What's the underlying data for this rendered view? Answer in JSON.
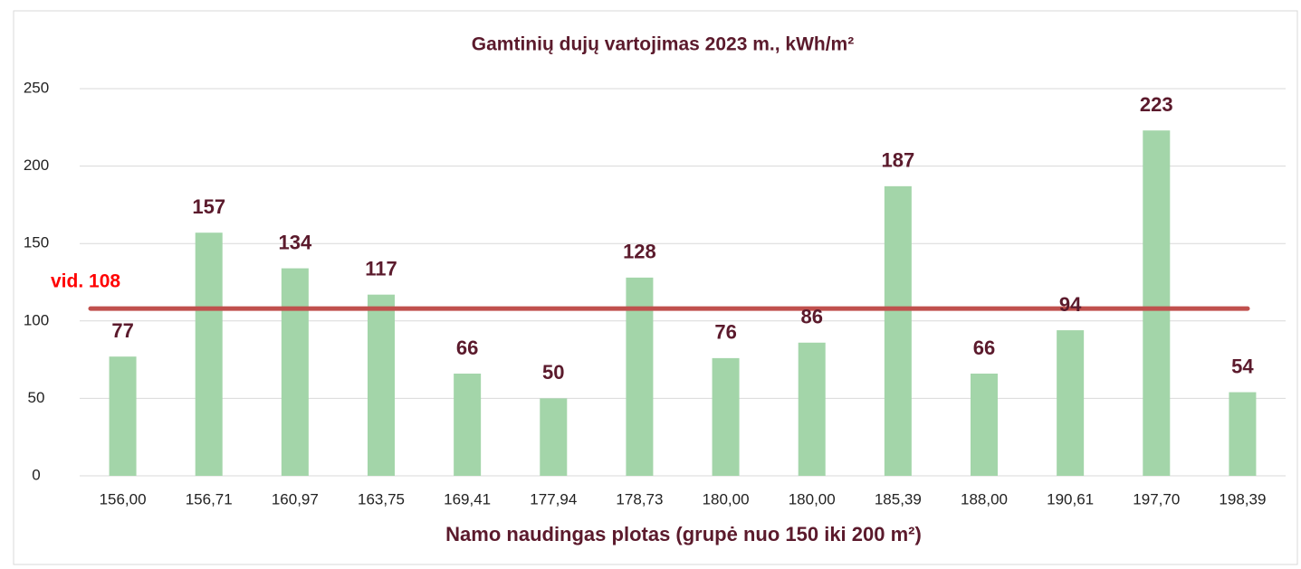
{
  "chart_data": {
    "type": "bar",
    "title": "Gamtinių dujų vartojimas 2023 m., kWh/m²",
    "x_label": "Namo naudingas plotas (grupė nuo 150 iki 200 m²)",
    "categories": [
      "156,00",
      "156,71",
      "160,97",
      "163,75",
      "169,41",
      "177,94",
      "178,73",
      "180,00",
      "180,00",
      "185,39",
      "188,00",
      "190,61",
      "197,70",
      "198,39"
    ],
    "values": [
      77,
      157,
      134,
      117,
      66,
      50,
      128,
      76,
      86,
      187,
      66,
      94,
      223,
      54
    ],
    "color": "#a3d5a9",
    "ylim": [
      0,
      250
    ],
    "yticks": [
      0,
      50,
      100,
      150,
      200,
      250
    ],
    "grid": true,
    "average": {
      "label": "vid. 108",
      "value": 108,
      "color": "#c0504d"
    }
  }
}
